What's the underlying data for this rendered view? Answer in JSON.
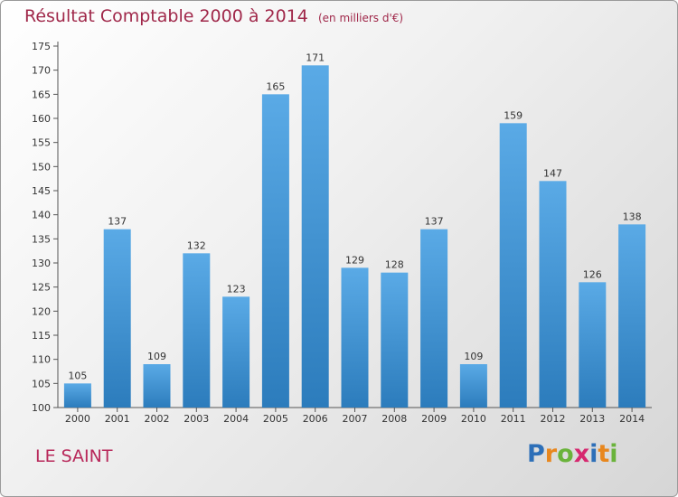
{
  "header": {
    "title": "Résultat Comptable 2000 à 2014",
    "unit": "(en milliers d'€)"
  },
  "commune": "LE SAINT",
  "logo": {
    "letters": [
      "P",
      "r",
      "o",
      "x",
      "i",
      "t",
      "i"
    ],
    "colors": [
      "#2d6fb8",
      "#e8871e",
      "#6ab33b",
      "#d6286f",
      "#2d6fb8",
      "#e8871e",
      "#6ab33b"
    ]
  },
  "chart_data": {
    "type": "bar",
    "title": "Résultat Comptable 2000 à 2014",
    "categories": [
      "2000",
      "2001",
      "2002",
      "2003",
      "2004",
      "2005",
      "2006",
      "2007",
      "2008",
      "2009",
      "2010",
      "2011",
      "2012",
      "2013",
      "2014"
    ],
    "values": [
      105,
      137,
      109,
      132,
      123,
      165,
      171,
      129,
      128,
      137,
      109,
      159,
      147,
      126,
      138
    ],
    "ylim": [
      100,
      175
    ],
    "yticks": [
      100,
      105,
      110,
      115,
      120,
      125,
      130,
      135,
      140,
      145,
      150,
      155,
      160,
      165,
      170,
      175
    ],
    "grid": false,
    "colors": {
      "bar_top": "#5aaae6",
      "bar_bottom": "#2c7cbc",
      "axis": "#555555"
    }
  }
}
